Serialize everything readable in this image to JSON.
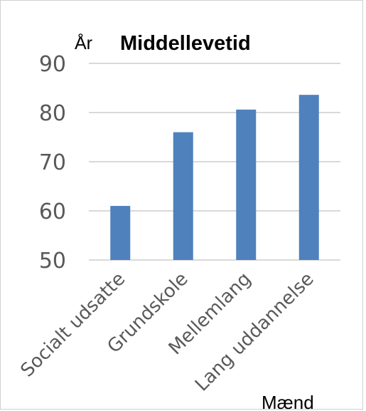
{
  "chart_data": {
    "type": "bar",
    "title": "Middellevetid",
    "ylabel": "År",
    "xlabel": "Mænd",
    "categories": [
      "Socialt udsatte",
      "Grundskole",
      "Mellemlang",
      "Lang uddannelse"
    ],
    "values": [
      61,
      76,
      80.6,
      83.6
    ],
    "ylim": [
      50,
      90
    ],
    "yticks": [
      50,
      60,
      70,
      80,
      90
    ],
    "grid": true,
    "legend": "none",
    "bar_color": "#4F81BD",
    "grid_color": "#d9d9d9"
  }
}
